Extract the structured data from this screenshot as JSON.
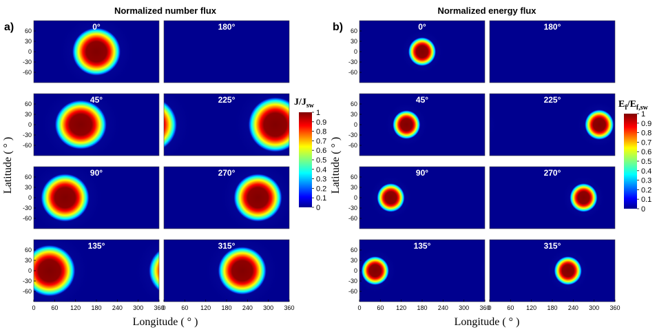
{
  "figure": {
    "panels": [
      {
        "letter": "a)",
        "title": "Normalized number flux",
        "colorbar": {
          "label_main": "J/J",
          "label_sub": "sw",
          "ticks": [
            "1",
            "0.9",
            "0.8",
            "0.7",
            "0.6",
            "0.5",
            "0.4",
            "0.3",
            "0.2",
            "0.1",
            "0"
          ]
        }
      },
      {
        "letter": "b)",
        "title": "Normalized energy flux",
        "colorbar": {
          "label_main": "E",
          "label_sub1": "f",
          "label_mid": "/E",
          "label_sub2": "f,sw",
          "ticks": [
            "1",
            "0.9",
            "0.8",
            "0.7",
            "0.6",
            "0.5",
            "0.4",
            "0.3",
            "0.2",
            "0.1",
            "0"
          ]
        }
      }
    ],
    "xlabel": "Longitude ( ° )",
    "ylabel": "Latitude ( ° )",
    "x_ticks": [
      "0",
      "60",
      "120",
      "180",
      "240",
      "300",
      "360"
    ],
    "y_ticks": [
      "60",
      "30",
      "0",
      "-30",
      "-60"
    ],
    "colors": {
      "background": "#00008f",
      "field": "#0a0aa8"
    }
  },
  "chart_data": [
    {
      "type": "heatmap",
      "title": "Normalized number flux",
      "xlabel": "Longitude ( ° )",
      "ylabel": "Latitude ( ° )",
      "xlim": [
        0,
        360
      ],
      "ylim": [
        -90,
        90
      ],
      "colorbar_range": [
        0,
        1
      ],
      "colorbar_label": "J/J_sw",
      "subplots": [
        {
          "angle": "0°",
          "spots": [
            {
              "lon": 180,
              "lat": 0,
              "peak": 1.0,
              "rx": 70,
              "ry": 70
            }
          ]
        },
        {
          "angle": "180°",
          "spots": []
        },
        {
          "angle": "45°",
          "spots": [
            {
              "lon": 135,
              "lat": 0,
              "peak": 1.0,
              "rx": 75,
              "ry": 72
            }
          ]
        },
        {
          "angle": "225°",
          "spots": [
            {
              "lon": 320,
              "lat": 0,
              "peak": 1.0,
              "rx": 78,
              "ry": 80
            },
            {
              "lon": -40,
              "lat": 0,
              "peak": 1.0,
              "rx": 78,
              "ry": 80
            }
          ]
        },
        {
          "angle": "90°",
          "spots": [
            {
              "lon": 90,
              "lat": 0,
              "peak": 1.0,
              "rx": 70,
              "ry": 70
            }
          ]
        },
        {
          "angle": "270°",
          "spots": [
            {
              "lon": 270,
              "lat": 0,
              "peak": 1.0,
              "rx": 70,
              "ry": 70
            }
          ]
        },
        {
          "angle": "135°",
          "spots": [
            {
              "lon": 45,
              "lat": 0,
              "peak": 1.0,
              "rx": 75,
              "ry": 75
            },
            {
              "lon": 405,
              "lat": 0,
              "peak": 1.0,
              "rx": 75,
              "ry": 75
            }
          ]
        },
        {
          "angle": "315°",
          "spots": [
            {
              "lon": 225,
              "lat": 0,
              "peak": 1.0,
              "rx": 70,
              "ry": 70
            }
          ]
        }
      ]
    },
    {
      "type": "heatmap",
      "title": "Normalized energy flux",
      "xlabel": "Longitude ( ° )",
      "ylabel": "Latitude ( ° )",
      "xlim": [
        0,
        360
      ],
      "ylim": [
        -90,
        90
      ],
      "colorbar_range": [
        0,
        1
      ],
      "colorbar_label": "E_f/E_f,sw",
      "subplots": [
        {
          "angle": "0°",
          "spots": [
            {
              "lon": 180,
              "lat": 0,
              "peak": 1.0,
              "rx": 40,
              "ry": 42
            }
          ]
        },
        {
          "angle": "180°",
          "spots": []
        },
        {
          "angle": "45°",
          "spots": [
            {
              "lon": 135,
              "lat": 0,
              "peak": 1.0,
              "rx": 40,
              "ry": 42
            }
          ]
        },
        {
          "angle": "225°",
          "spots": [
            {
              "lon": 315,
              "lat": 0,
              "peak": 1.0,
              "rx": 42,
              "ry": 44
            },
            {
              "lon": -45,
              "lat": 0,
              "peak": 1.0,
              "rx": 42,
              "ry": 44
            }
          ]
        },
        {
          "angle": "90°",
          "spots": [
            {
              "lon": 90,
              "lat": 0,
              "peak": 1.0,
              "rx": 40,
              "ry": 42
            }
          ]
        },
        {
          "angle": "270°",
          "spots": [
            {
              "lon": 270,
              "lat": 0,
              "peak": 1.0,
              "rx": 40,
              "ry": 42
            }
          ]
        },
        {
          "angle": "135°",
          "spots": [
            {
              "lon": 45,
              "lat": 0,
              "peak": 1.0,
              "rx": 40,
              "ry": 42
            },
            {
              "lon": 405,
              "lat": 0,
              "peak": 1.0,
              "rx": 40,
              "ry": 42
            }
          ]
        },
        {
          "angle": "315°",
          "spots": [
            {
              "lon": 225,
              "lat": 0,
              "peak": 1.0,
              "rx": 40,
              "ry": 42
            }
          ]
        }
      ]
    }
  ]
}
